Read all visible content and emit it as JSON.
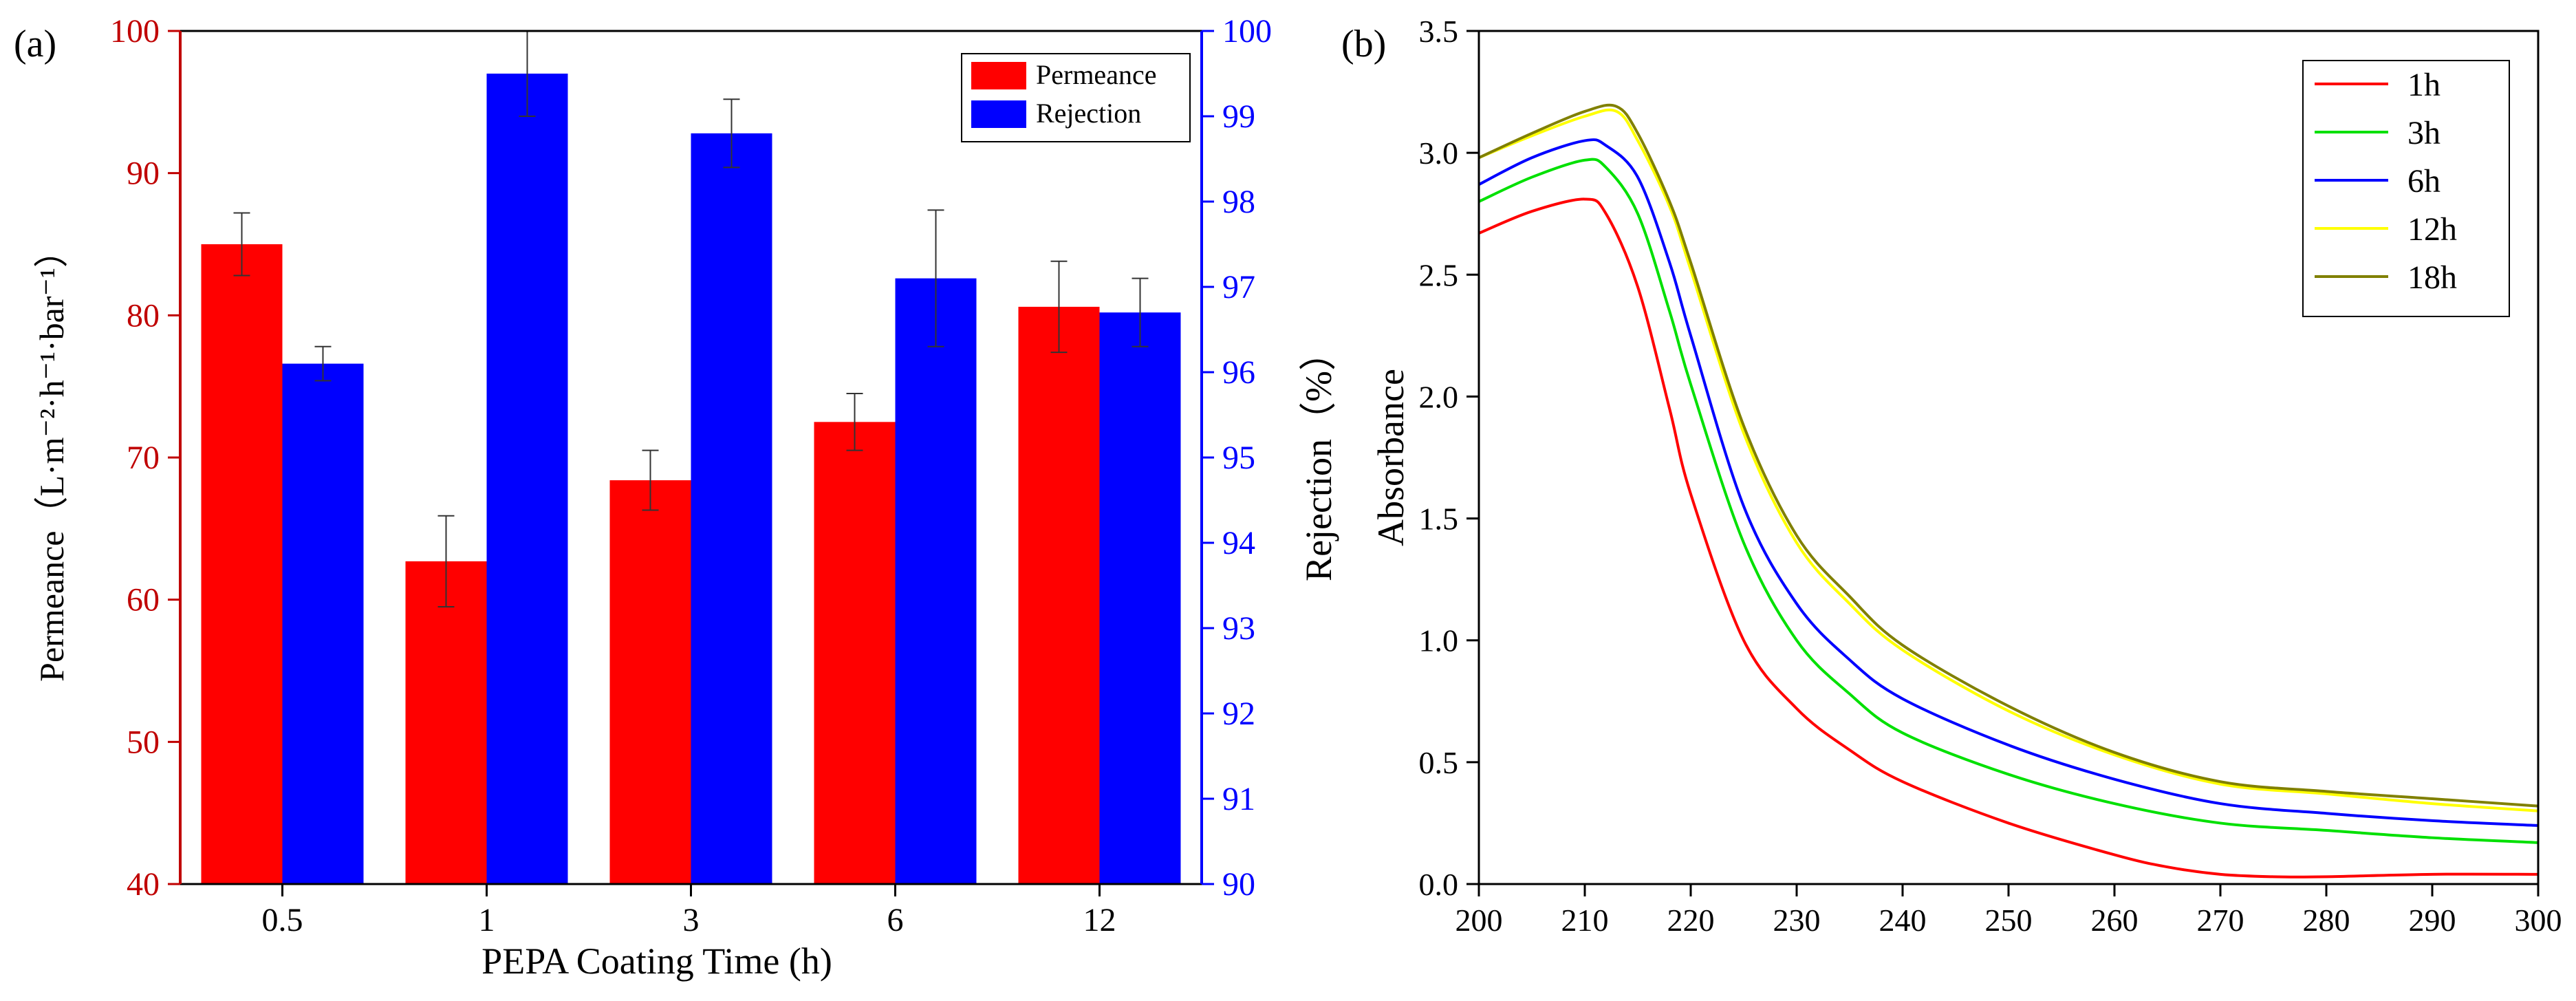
{
  "panel_a": {
    "label": "(a)",
    "xlabel": "PEPA Coating Time (h)",
    "ylabel_left": "Permeance（L·m⁻²·h⁻¹·bar⁻¹）",
    "ylabel_right": "Rejection（%）",
    "colors": {
      "permeance": "#ff0000",
      "rejection": "#0000ff",
      "left_axis": "#c00000",
      "right_axis": "#0000ff"
    }
  },
  "panel_b": {
    "label": "(b)",
    "ylabel": "Absorbance",
    "xlabel": ""
  },
  "chart_data": [
    {
      "type": "bar",
      "categories": [
        "0.5",
        "1",
        "3",
        "6",
        "12"
      ],
      "series": [
        {
          "name": "Permeance",
          "axis": "left",
          "color": "#ff0000",
          "values": [
            85.0,
            62.7,
            68.4,
            72.5,
            80.6
          ],
          "errors": [
            2.2,
            3.2,
            2.1,
            2.0,
            3.2
          ]
        },
        {
          "name": "Rejection",
          "axis": "right",
          "color": "#0000ff",
          "values": [
            96.1,
            99.5,
            98.8,
            97.1,
            96.7
          ],
          "errors": [
            0.2,
            0.5,
            0.4,
            0.8,
            0.4
          ]
        }
      ],
      "ylim_left": [
        40,
        100
      ],
      "yticks_left": [
        40,
        50,
        60,
        70,
        80,
        90,
        100
      ],
      "ylim_right": [
        90,
        100
      ],
      "yticks_right": [
        90,
        91,
        92,
        93,
        94,
        95,
        96,
        97,
        98,
        99,
        100
      ],
      "legend": "top-right"
    },
    {
      "type": "line",
      "xlim": [
        200,
        300
      ],
      "ylim": [
        0.0,
        3.5
      ],
      "xticks": [
        200,
        210,
        220,
        230,
        240,
        250,
        260,
        270,
        280,
        290,
        300
      ],
      "yticks": [
        "0.0",
        "0.5",
        "1.0",
        "1.5",
        "2.0",
        "2.5",
        "3.0",
        "3.5"
      ],
      "legend": "top-right",
      "series": [
        {
          "name": "1h",
          "color": "#ff0000",
          "x": [
            200,
            205,
            210,
            212,
            215,
            218,
            220,
            225,
            230,
            235,
            240,
            250,
            260,
            265,
            270,
            275,
            280,
            290,
            300
          ],
          "y": [
            2.67,
            2.76,
            2.81,
            2.75,
            2.45,
            1.95,
            1.6,
            1.0,
            0.72,
            0.55,
            0.42,
            0.25,
            0.12,
            0.07,
            0.04,
            0.03,
            0.03,
            0.04,
            0.04
          ]
        },
        {
          "name": "3h",
          "color": "#00e000",
          "x": [
            200,
            205,
            210,
            212,
            215,
            218,
            220,
            225,
            230,
            235,
            240,
            250,
            260,
            270,
            280,
            290,
            300
          ],
          "y": [
            2.8,
            2.9,
            2.97,
            2.94,
            2.75,
            2.35,
            2.05,
            1.4,
            1.0,
            0.78,
            0.62,
            0.45,
            0.33,
            0.25,
            0.22,
            0.19,
            0.17
          ]
        },
        {
          "name": "6h",
          "color": "#0000ff",
          "x": [
            200,
            205,
            210,
            212,
            215,
            218,
            220,
            225,
            230,
            235,
            240,
            250,
            260,
            270,
            280,
            290,
            300
          ],
          "y": [
            2.87,
            2.98,
            3.05,
            3.03,
            2.9,
            2.55,
            2.25,
            1.55,
            1.15,
            0.92,
            0.76,
            0.57,
            0.43,
            0.33,
            0.29,
            0.26,
            0.24
          ]
        },
        {
          "name": "12h",
          "color": "#ffff00",
          "x": [
            200,
            205,
            210,
            213,
            215,
            218,
            220,
            225,
            230,
            235,
            240,
            250,
            260,
            270,
            280,
            290,
            300
          ],
          "y": [
            2.98,
            3.07,
            3.15,
            3.17,
            3.05,
            2.78,
            2.52,
            1.85,
            1.4,
            1.15,
            0.96,
            0.71,
            0.53,
            0.41,
            0.37,
            0.33,
            0.3
          ]
        },
        {
          "name": "18h",
          "color": "#808000",
          "x": [
            200,
            205,
            210,
            213,
            215,
            218,
            220,
            225,
            230,
            235,
            240,
            250,
            260,
            270,
            280,
            290,
            300
          ],
          "y": [
            2.98,
            3.08,
            3.17,
            3.19,
            3.08,
            2.8,
            2.55,
            1.88,
            1.43,
            1.18,
            0.98,
            0.73,
            0.54,
            0.42,
            0.38,
            0.35,
            0.32
          ]
        }
      ]
    }
  ]
}
